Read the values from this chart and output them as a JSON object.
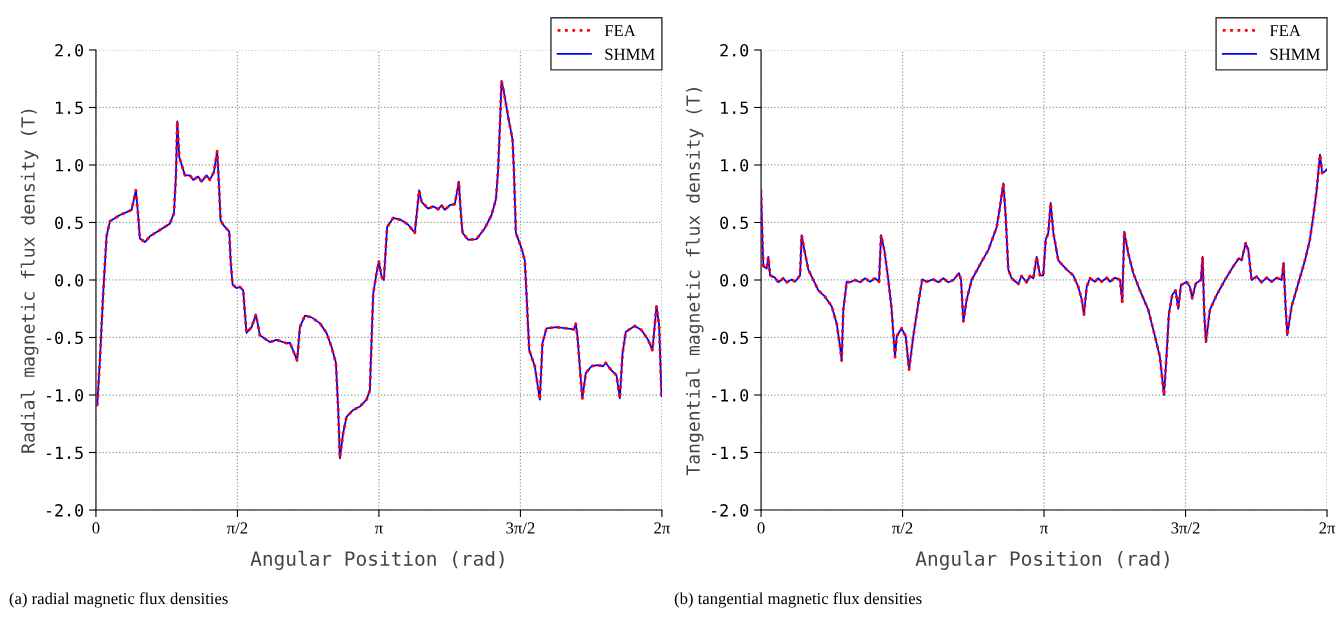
{
  "chart_data": [
    {
      "type": "line",
      "xlabel": "Angular Position (rad)",
      "ylabel": "Radial magnetic flux density (T)",
      "x": [
        0.014,
        0.044,
        0.081,
        0.118,
        0.155,
        0.266,
        0.34,
        0.396,
        0.444,
        0.47,
        0.488,
        0.544,
        0.599,
        0.71,
        0.821,
        0.866,
        0.888,
        0.903,
        0.925,
        0.988,
        1.043,
        1.08,
        1.135,
        1.173,
        1.229,
        1.265,
        1.31,
        1.346,
        1.365,
        1.384,
        1.413,
        1.48,
        1.495,
        1.517,
        1.561,
        1.598,
        1.635,
        1.654,
        1.672,
        1.728,
        1.776,
        1.82,
        1.93,
        2.005,
        2.117,
        2.153,
        2.234,
        2.264,
        2.32,
        2.394,
        2.486,
        2.56,
        2.615,
        2.664,
        2.69,
        2.708,
        2.745,
        2.782,
        2.856,
        2.93,
        3.004,
        3.041,
        3.078,
        3.115,
        3.141,
        3.171,
        3.196,
        3.233,
        3.3,
        3.393,
        3.467,
        3.54,
        3.588,
        3.615,
        3.688,
        3.744,
        3.8,
        3.836,
        3.873,
        3.929,
        3.984,
        4.029,
        4.048,
        4.07,
        4.132,
        4.225,
        4.317,
        4.392,
        4.44,
        4.465,
        4.484,
        4.503,
        4.528,
        4.576,
        4.625,
        4.64,
        4.662,
        4.725,
        4.761,
        4.78,
        4.81,
        4.872,
        4.928,
        4.957,
        5.002,
        5.113,
        5.224,
        5.305,
        5.327,
        5.346,
        5.38,
        5.4,
        5.438,
        5.501,
        5.568,
        5.63,
        5.66,
        5.705,
        5.779,
        5.816,
        5.846,
        5.882,
        5.982,
        6.056,
        6.13,
        6.178,
        6.223,
        6.252,
        6.279
      ],
      "series": [
        {
          "name": "FEA",
          "color": "#ff0000",
          "line_style": "dotted",
          "values": [
            -1.09,
            -0.7,
            -0.11,
            0.38,
            0.51,
            0.565,
            0.59,
            0.61,
            0.78,
            0.55,
            0.36,
            0.33,
            0.38,
            0.435,
            0.49,
            0.58,
            0.9,
            1.38,
            1.07,
            0.91,
            0.91,
            0.87,
            0.9,
            0.855,
            0.91,
            0.87,
            0.94,
            1.12,
            0.84,
            0.52,
            0.48,
            0.42,
            0.17,
            -0.04,
            -0.07,
            -0.06,
            -0.09,
            -0.29,
            -0.46,
            -0.41,
            -0.3,
            -0.48,
            -0.54,
            -0.52,
            -0.55,
            -0.545,
            -0.7,
            -0.41,
            -0.31,
            -0.325,
            -0.375,
            -0.46,
            -0.58,
            -0.72,
            -1.13,
            -1.55,
            -1.33,
            -1.19,
            -1.13,
            -1.1,
            -1.04,
            -0.96,
            -0.12,
            0.06,
            0.16,
            0.03,
            0.0,
            0.46,
            0.54,
            0.52,
            0.48,
            0.41,
            0.78,
            0.68,
            0.62,
            0.64,
            0.615,
            0.65,
            0.61,
            0.65,
            0.66,
            0.855,
            0.61,
            0.41,
            0.35,
            0.355,
            0.45,
            0.565,
            0.7,
            0.96,
            1.33,
            1.73,
            1.64,
            1.42,
            1.22,
            0.96,
            0.41,
            0.275,
            0.17,
            -0.12,
            -0.61,
            -0.75,
            -1.04,
            -0.55,
            -0.42,
            -0.41,
            -0.42,
            -0.43,
            -0.38,
            -0.49,
            -0.84,
            -1.03,
            -0.81,
            -0.75,
            -0.74,
            -0.75,
            -0.72,
            -0.77,
            -0.83,
            -1.03,
            -0.64,
            -0.45,
            -0.4,
            -0.435,
            -0.52,
            -0.61,
            -0.23,
            -0.39,
            -1.01
          ]
        },
        {
          "name": "SHMM",
          "color": "#0000ff",
          "line_style": "solid",
          "values": [
            -1.09,
            -0.7,
            -0.11,
            0.38,
            0.51,
            0.565,
            0.59,
            0.61,
            0.78,
            0.55,
            0.36,
            0.33,
            0.38,
            0.435,
            0.49,
            0.58,
            0.9,
            1.38,
            1.07,
            0.91,
            0.91,
            0.87,
            0.9,
            0.855,
            0.91,
            0.87,
            0.94,
            1.12,
            0.84,
            0.52,
            0.48,
            0.42,
            0.17,
            -0.04,
            -0.07,
            -0.06,
            -0.09,
            -0.29,
            -0.46,
            -0.41,
            -0.3,
            -0.48,
            -0.54,
            -0.52,
            -0.55,
            -0.545,
            -0.7,
            -0.41,
            -0.31,
            -0.325,
            -0.375,
            -0.46,
            -0.58,
            -0.72,
            -1.13,
            -1.55,
            -1.33,
            -1.19,
            -1.13,
            -1.1,
            -1.04,
            -0.96,
            -0.12,
            0.06,
            0.16,
            0.03,
            0.0,
            0.46,
            0.54,
            0.52,
            0.48,
            0.41,
            0.78,
            0.68,
            0.62,
            0.64,
            0.615,
            0.65,
            0.61,
            0.65,
            0.66,
            0.855,
            0.61,
            0.41,
            0.35,
            0.355,
            0.45,
            0.565,
            0.7,
            0.96,
            1.33,
            1.73,
            1.64,
            1.42,
            1.22,
            0.96,
            0.41,
            0.275,
            0.17,
            -0.12,
            -0.61,
            -0.75,
            -1.04,
            -0.55,
            -0.42,
            -0.41,
            -0.42,
            -0.43,
            -0.38,
            -0.49,
            -0.84,
            -1.03,
            -0.81,
            -0.75,
            -0.74,
            -0.75,
            -0.72,
            -0.77,
            -0.83,
            -1.03,
            -0.64,
            -0.45,
            -0.4,
            -0.435,
            -0.52,
            -0.61,
            -0.23,
            -0.39,
            -1.01
          ]
        }
      ],
      "xlim": [
        0,
        6.2832
      ],
      "xticks": [
        0,
        {
          "value": 1.5708,
          "label": "π/2"
        },
        {
          "value": 3.1416,
          "label": "π"
        },
        {
          "value": 4.7124,
          "label": "3π/2"
        },
        {
          "value": 6.2832,
          "label": "2π"
        }
      ],
      "ylim": [
        -2,
        2
      ],
      "yticks": [
        {
          "value": -2,
          "label": "-2.0"
        },
        {
          "value": -1.5,
          "label": "-1.5"
        },
        {
          "value": -1,
          "label": "-1.0"
        },
        {
          "value": -0.5,
          "label": "-0.5"
        },
        {
          "value": 0,
          "label": "0.0"
        },
        {
          "value": 0.5,
          "label": "0.5"
        },
        {
          "value": 1,
          "label": "1.0"
        },
        {
          "value": 1.5,
          "label": "1.5"
        },
        {
          "value": 2,
          "label": "2.0"
        }
      ],
      "grid": true,
      "legend": "top right",
      "annotations": [
        "(a) radial magnetic flux densities"
      ]
    },
    {
      "type": "line",
      "xlabel": "Angular Position (rad)",
      "ylabel": "Tangential magnetic flux density (T)",
      "x": [
        0.0,
        0.015,
        0.026,
        0.063,
        0.081,
        0.1,
        0.155,
        0.192,
        0.247,
        0.285,
        0.34,
        0.377,
        0.433,
        0.451,
        0.481,
        0.525,
        0.599,
        0.636,
        0.71,
        0.785,
        0.84,
        0.877,
        0.895,
        0.913,
        0.951,
        0.988,
        1.043,
        1.099,
        1.154,
        1.21,
        1.265,
        1.31,
        1.332,
        1.369,
        1.413,
        1.45,
        1.487,
        1.506,
        1.561,
        1.606,
        1.643,
        1.69,
        1.746,
        1.79,
        1.839,
        1.913,
        1.968,
        2.024,
        2.079,
        2.135,
        2.198,
        2.22,
        2.246,
        2.283,
        2.338,
        2.449,
        2.523,
        2.616,
        2.653,
        2.69,
        2.716,
        2.745,
        2.782,
        2.856,
        2.893,
        2.949,
        2.986,
        3.022,
        3.06,
        3.097,
        3.133,
        3.16,
        3.189,
        3.215,
        3.245,
        3.3,
        3.393,
        3.466,
        3.522,
        3.56,
        3.585,
        3.615,
        3.652,
        3.707,
        3.744,
        3.781,
        3.837,
        3.874,
        3.929,
        3.985,
        4.01,
        4.032,
        4.077,
        4.132,
        4.206,
        4.299,
        4.373,
        4.428,
        4.473,
        4.503,
        4.528,
        4.565,
        4.602,
        4.632,
        4.661,
        4.725,
        4.761,
        4.787,
        4.825,
        4.883,
        4.902,
        4.92,
        4.939,
        4.983,
        5.058,
        5.15,
        5.243,
        5.305,
        5.335,
        5.38,
        5.409,
        5.446,
        5.502,
        5.557,
        5.613,
        5.668,
        5.724,
        5.779,
        5.801,
        5.823,
        5.842,
        5.89,
        5.964,
        6.038,
        6.093,
        6.13,
        6.168,
        6.205,
        6.23,
        6.253,
        6.279
      ],
      "series": [
        {
          "name": "FEA",
          "color": "#ff0000",
          "line_style": "dotted",
          "values": [
            0.78,
            0.35,
            0.12,
            0.1,
            0.2,
            0.04,
            0.02,
            -0.02,
            0.015,
            -0.02,
            0.005,
            -0.015,
            0.04,
            0.39,
            0.26,
            0.09,
            -0.03,
            -0.09,
            -0.145,
            -0.23,
            -0.38,
            -0.58,
            -0.7,
            -0.26,
            -0.015,
            -0.02,
            0.0,
            -0.02,
            0.015,
            -0.015,
            0.015,
            -0.015,
            0.39,
            0.26,
            0.0,
            -0.26,
            -0.67,
            -0.49,
            -0.42,
            -0.49,
            -0.78,
            -0.49,
            -0.2,
            0.005,
            -0.015,
            0.005,
            -0.02,
            0.015,
            -0.02,
            0.0,
            0.06,
            0.0,
            -0.36,
            -0.17,
            0.0,
            0.16,
            0.26,
            0.46,
            0.64,
            0.84,
            0.55,
            0.09,
            0.015,
            -0.035,
            0.035,
            -0.02,
            0.035,
            0.015,
            0.2,
            0.04,
            0.04,
            0.35,
            0.41,
            0.67,
            0.41,
            0.17,
            0.09,
            0.04,
            -0.06,
            -0.17,
            -0.3,
            -0.06,
            0.015,
            -0.015,
            0.015,
            -0.015,
            0.02,
            -0.015,
            0.02,
            0.0,
            -0.19,
            0.42,
            0.23,
            0.06,
            -0.09,
            -0.26,
            -0.49,
            -0.67,
            -1.0,
            -0.64,
            -0.29,
            -0.13,
            -0.09,
            -0.25,
            -0.045,
            -0.015,
            -0.06,
            -0.16,
            -0.03,
            0.0,
            0.2,
            -0.29,
            -0.54,
            -0.26,
            -0.13,
            0.0,
            0.12,
            0.19,
            0.17,
            0.32,
            0.26,
            0.0,
            0.03,
            -0.02,
            0.02,
            -0.015,
            0.02,
            0.0,
            0.145,
            -0.23,
            -0.48,
            -0.23,
            -0.03,
            0.17,
            0.35,
            0.55,
            0.78,
            1.09,
            0.93,
            0.94,
            0.96
          ]
        },
        {
          "name": "SHMM",
          "color": "#0000ff",
          "line_style": "solid",
          "values": [
            0.78,
            0.35,
            0.12,
            0.1,
            0.2,
            0.04,
            0.02,
            -0.02,
            0.015,
            -0.02,
            0.005,
            -0.015,
            0.04,
            0.39,
            0.26,
            0.09,
            -0.03,
            -0.09,
            -0.145,
            -0.23,
            -0.38,
            -0.58,
            -0.7,
            -0.26,
            -0.015,
            -0.02,
            0.0,
            -0.02,
            0.015,
            -0.015,
            0.015,
            -0.015,
            0.39,
            0.26,
            0.0,
            -0.26,
            -0.67,
            -0.49,
            -0.42,
            -0.49,
            -0.78,
            -0.49,
            -0.2,
            0.005,
            -0.015,
            0.005,
            -0.02,
            0.015,
            -0.02,
            0.0,
            0.06,
            0.0,
            -0.36,
            -0.17,
            0.0,
            0.16,
            0.26,
            0.46,
            0.64,
            0.84,
            0.55,
            0.09,
            0.015,
            -0.035,
            0.035,
            -0.02,
            0.035,
            0.015,
            0.2,
            0.04,
            0.04,
            0.35,
            0.41,
            0.67,
            0.41,
            0.17,
            0.09,
            0.04,
            -0.06,
            -0.17,
            -0.3,
            -0.06,
            0.015,
            -0.015,
            0.015,
            -0.015,
            0.02,
            -0.015,
            0.02,
            0.0,
            -0.19,
            0.42,
            0.23,
            0.06,
            -0.09,
            -0.26,
            -0.49,
            -0.67,
            -1.0,
            -0.64,
            -0.29,
            -0.13,
            -0.09,
            -0.25,
            -0.045,
            -0.015,
            -0.06,
            -0.16,
            -0.03,
            0.0,
            0.2,
            -0.29,
            -0.54,
            -0.26,
            -0.13,
            0.0,
            0.12,
            0.19,
            0.17,
            0.32,
            0.26,
            0.0,
            0.03,
            -0.02,
            0.02,
            -0.015,
            0.02,
            0.0,
            0.145,
            -0.23,
            -0.48,
            -0.23,
            -0.03,
            0.17,
            0.35,
            0.55,
            0.78,
            1.09,
            0.93,
            0.94,
            0.96
          ]
        }
      ],
      "xlim": [
        0,
        6.2832
      ],
      "xticks": [
        0,
        {
          "value": 1.5708,
          "label": "π/2"
        },
        {
          "value": 3.1416,
          "label": "π"
        },
        {
          "value": 4.7124,
          "label": "3π/2"
        },
        {
          "value": 6.2832,
          "label": "2π"
        }
      ],
      "ylim": [
        -2,
        2
      ],
      "yticks": [
        {
          "value": -2,
          "label": "-2.0"
        },
        {
          "value": -1.5,
          "label": "-1.5"
        },
        {
          "value": -1,
          "label": "-1.0"
        },
        {
          "value": -0.5,
          "label": "-0.5"
        },
        {
          "value": 0,
          "label": "0.0"
        },
        {
          "value": 0.5,
          "label": "0.5"
        },
        {
          "value": 1,
          "label": "1.0"
        },
        {
          "value": 1.5,
          "label": "1.5"
        },
        {
          "value": 2,
          "label": "2.0"
        }
      ],
      "grid": true,
      "legend": "top right",
      "annotations": [
        "(b) tangential magnetic flux densities"
      ]
    }
  ]
}
